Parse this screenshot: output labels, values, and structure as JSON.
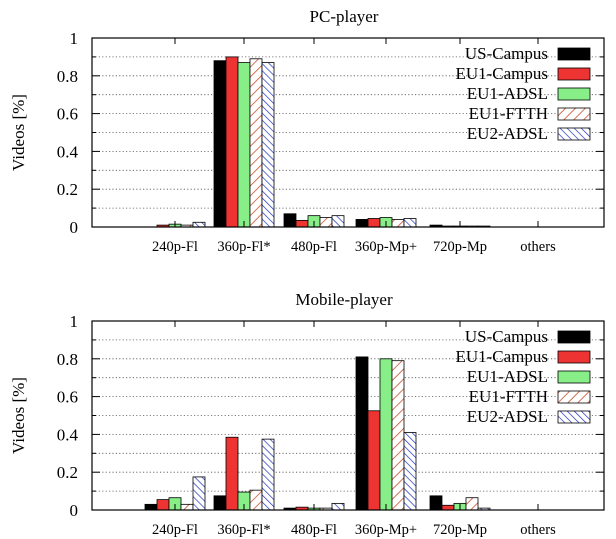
{
  "chart_data": [
    {
      "type": "bar",
      "title": "PC-player",
      "ylabel": "Videos [%]",
      "xlabel": "",
      "ylim": [
        0,
        1
      ],
      "yticks": [
        "0",
        "0.2",
        "0.4",
        "0.6",
        "0.8",
        "1"
      ],
      "grid": "horizontal dotted",
      "legend_position": "top-right",
      "categories": [
        "240p-Fl",
        "360p-Fl*",
        "480p-Fl",
        "360p-Mp+",
        "720p-Mp",
        "others"
      ],
      "series": [
        {
          "name": "US-Campus",
          "values": [
            0.0,
            0.88,
            0.07,
            0.04,
            0.01,
            0.0
          ]
        },
        {
          "name": "EU1-Campus",
          "values": [
            0.01,
            0.9,
            0.035,
            0.045,
            0.005,
            0.0
          ]
        },
        {
          "name": "EU1-ADSL",
          "values": [
            0.015,
            0.87,
            0.06,
            0.05,
            0.005,
            0.0
          ]
        },
        {
          "name": "EU1-FTTH",
          "values": [
            0.01,
            0.89,
            0.05,
            0.04,
            0.005,
            0.0
          ]
        },
        {
          "name": "EU2-ADSL",
          "values": [
            0.025,
            0.87,
            0.06,
            0.045,
            0.005,
            0.0
          ]
        }
      ]
    },
    {
      "type": "bar",
      "title": "Mobile-player",
      "ylabel": "Videos [%]",
      "xlabel": "",
      "ylim": [
        0,
        1
      ],
      "yticks": [
        "0",
        "0.2",
        "0.4",
        "0.6",
        "0.8",
        "1"
      ],
      "grid": "horizontal dotted",
      "legend_position": "top-right",
      "categories": [
        "240p-Fl",
        "360p-Fl*",
        "480p-Fl",
        "360p-Mp+",
        "720p-Mp",
        "others"
      ],
      "series": [
        {
          "name": "US-Campus",
          "values": [
            0.03,
            0.075,
            0.01,
            0.81,
            0.075,
            0.0
          ]
        },
        {
          "name": "EU1-Campus",
          "values": [
            0.055,
            0.385,
            0.015,
            0.525,
            0.025,
            0.0
          ]
        },
        {
          "name": "EU1-ADSL",
          "values": [
            0.065,
            0.095,
            0.01,
            0.8,
            0.035,
            0.0
          ]
        },
        {
          "name": "EU1-FTTH",
          "values": [
            0.03,
            0.105,
            0.01,
            0.79,
            0.065,
            0.0
          ]
        },
        {
          "name": "EU2-ADSL",
          "values": [
            0.175,
            0.375,
            0.035,
            0.41,
            0.01,
            0.0
          ]
        }
      ]
    }
  ],
  "series_styles": [
    {
      "fill": "#000000",
      "pattern": "solid"
    },
    {
      "fill": "#ee3333",
      "pattern": "solid"
    },
    {
      "fill": "#88ee88",
      "pattern": "solid"
    },
    {
      "fill": "#ffffff",
      "pattern": "diag-red"
    },
    {
      "fill": "#ffffff",
      "pattern": "diag-blue"
    }
  ]
}
